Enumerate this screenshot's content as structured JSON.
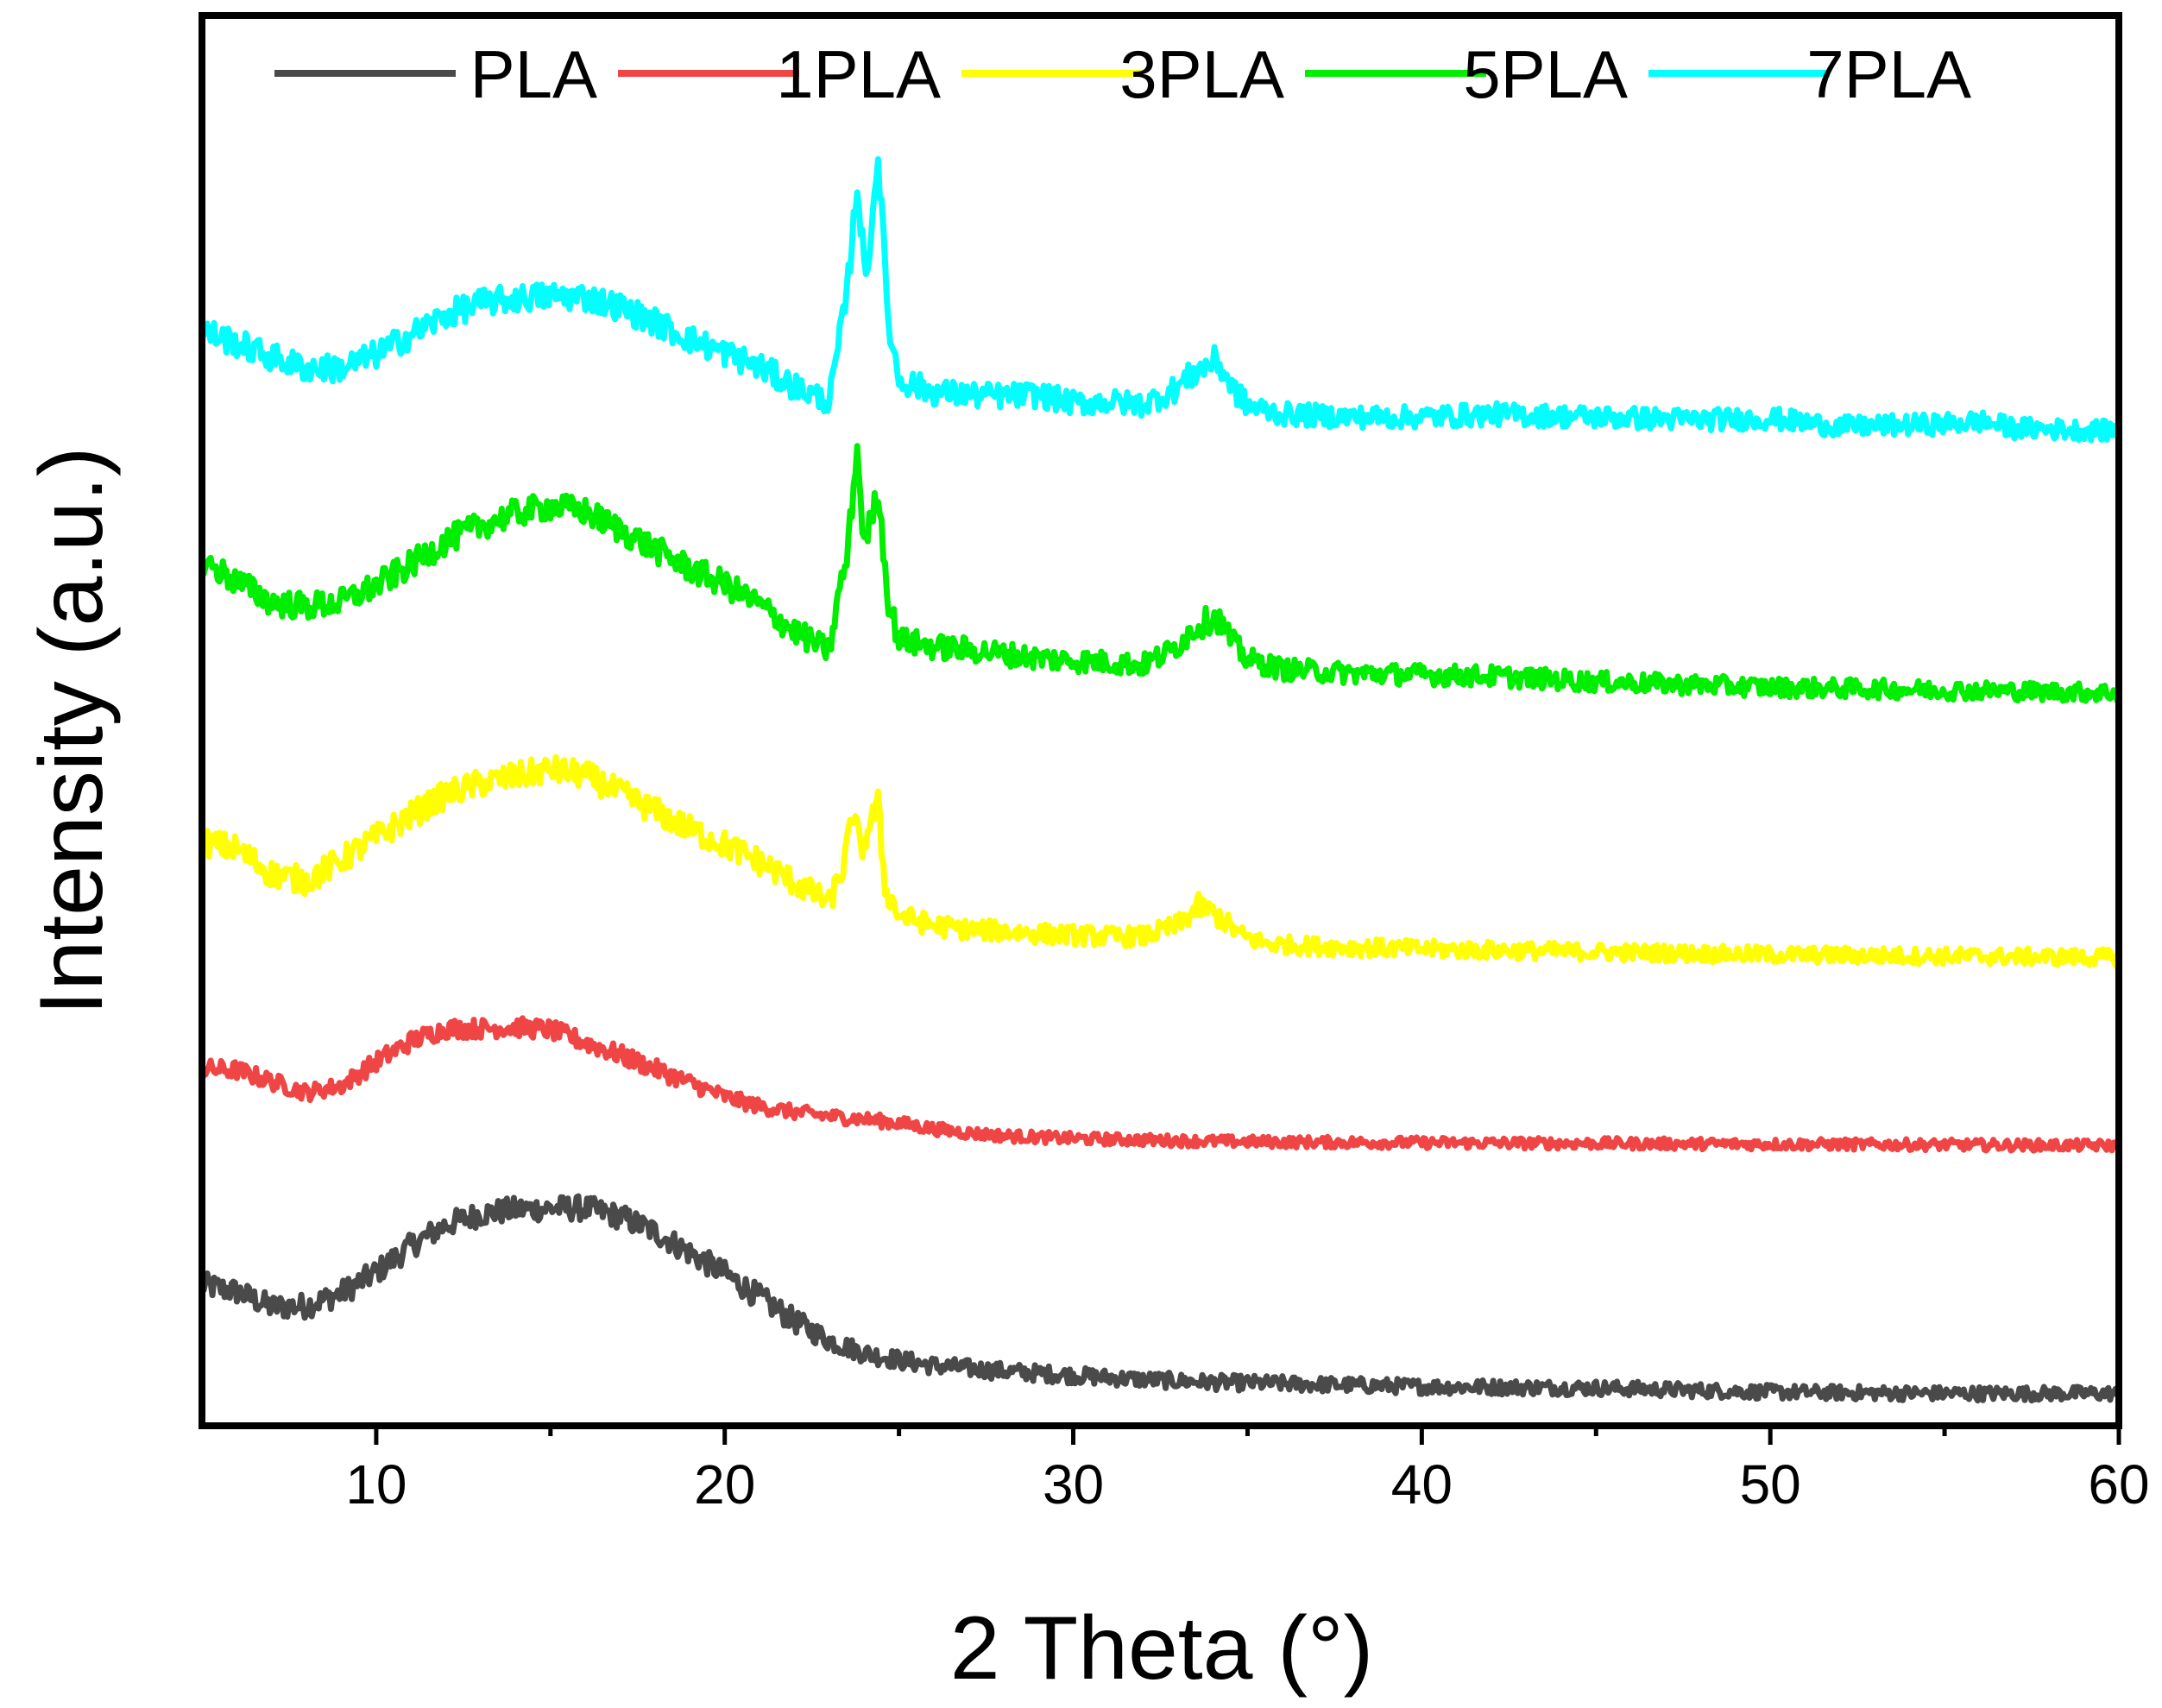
{
  "chart_data": {
    "type": "line",
    "title": "",
    "xlabel": "2 Theta (°)",
    "ylabel": "Intensity (a.u.)",
    "xlim": [
      5,
      60
    ],
    "ylim": [
      0,
      100
    ],
    "xticks": [
      10,
      20,
      30,
      40,
      50,
      60
    ],
    "y_tick_labels_shown": false,
    "grid": false,
    "legend_position": "top",
    "series": [
      {
        "name": "PLA",
        "color": "#4a4a4a",
        "offset": 1.5,
        "noise": 0.9,
        "points": [
          [
            5,
            8
          ],
          [
            6,
            7.5
          ],
          [
            7,
            6.4
          ],
          [
            8,
            6.5
          ],
          [
            9,
            7.4
          ],
          [
            10,
            8.9
          ],
          [
            11,
            10.8
          ],
          [
            12,
            12.3
          ],
          [
            13,
            13.1
          ],
          [
            14,
            13.4
          ],
          [
            15,
            13.5
          ],
          [
            16,
            13.5
          ],
          [
            17,
            12.9
          ],
          [
            18,
            11.8
          ],
          [
            19,
            10.3
          ],
          [
            20,
            8.8
          ],
          [
            21,
            7.1
          ],
          [
            22,
            5.4
          ],
          [
            23,
            4.0
          ],
          [
            24,
            3.1
          ],
          [
            25,
            2.6
          ],
          [
            26,
            2.2
          ],
          [
            28,
            1.8
          ],
          [
            30,
            1.5
          ],
          [
            32,
            1.2
          ],
          [
            34,
            1.0
          ],
          [
            36,
            0.9
          ],
          [
            38,
            0.8
          ],
          [
            40,
            0.7
          ],
          [
            45,
            0.6
          ],
          [
            50,
            0.3
          ],
          [
            55,
            0.2
          ],
          [
            60,
            0.2
          ]
        ]
      },
      {
        "name": "1PLA",
        "color": "#f04545",
        "offset": 19.5,
        "noise": 0.7,
        "points": [
          [
            5,
            5.5
          ],
          [
            6,
            5.4
          ],
          [
            7,
            4.6
          ],
          [
            8,
            3.8
          ],
          [
            9,
            4.3
          ],
          [
            10,
            6
          ],
          [
            11,
            7.5
          ],
          [
            12,
            8.4
          ],
          [
            13,
            8.4
          ],
          [
            14,
            8.5
          ],
          [
            15,
            8.3
          ],
          [
            16,
            7.4
          ],
          [
            17,
            6.5
          ],
          [
            18,
            5.5
          ],
          [
            19,
            4.5
          ],
          [
            20,
            3.5
          ],
          [
            21,
            2.8
          ],
          [
            22,
            2.4
          ],
          [
            23,
            2.1
          ],
          [
            24,
            1.9
          ],
          [
            25,
            1.6
          ],
          [
            26,
            1.2
          ],
          [
            27,
            0.9
          ],
          [
            28,
            0.7
          ],
          [
            30,
            0.5
          ],
          [
            32,
            0.4
          ],
          [
            34,
            0.3
          ],
          [
            36,
            0.25
          ],
          [
            40,
            0.2
          ],
          [
            45,
            0.15
          ],
          [
            50,
            0.1
          ],
          [
            55,
            0.05
          ],
          [
            60,
            0
          ]
        ]
      },
      {
        "name": "3PLA",
        "color": "#ffff00",
        "offset": 32.5,
        "noise": 1.0,
        "points": [
          [
            5,
            8.8
          ],
          [
            6,
            8.3
          ],
          [
            7,
            6.5
          ],
          [
            8,
            6
          ],
          [
            9,
            7.5
          ],
          [
            10,
            9.1
          ],
          [
            11,
            10.7
          ],
          [
            12,
            12.2
          ],
          [
            13,
            13
          ],
          [
            14,
            13.5
          ],
          [
            15,
            14
          ],
          [
            16,
            13.6
          ],
          [
            17,
            12.3
          ],
          [
            18,
            11
          ],
          [
            19,
            9.7
          ],
          [
            20,
            8.6
          ],
          [
            21,
            7.4
          ],
          [
            22,
            5.9
          ],
          [
            23,
            4.4
          ],
          [
            23.4,
            7
          ],
          [
            23.7,
            11
          ],
          [
            23.9,
            8
          ],
          [
            24.15,
            10
          ],
          [
            24.4,
            11.5
          ],
          [
            24.6,
            5.5
          ],
          [
            25,
            3.5
          ],
          [
            26,
            2.8
          ],
          [
            27,
            2.5
          ],
          [
            28,
            2.4
          ],
          [
            29,
            2.2
          ],
          [
            30,
            2.1
          ],
          [
            31,
            2
          ],
          [
            32,
            2
          ],
          [
            33,
            2.8
          ],
          [
            33.6,
            4.2
          ],
          [
            34.2,
            3.4
          ],
          [
            34.8,
            2.1
          ],
          [
            35.5,
            1.5
          ],
          [
            37,
            1.3
          ],
          [
            40,
            1.1
          ],
          [
            45,
            0.9
          ],
          [
            50,
            0.7
          ],
          [
            55,
            0.6
          ],
          [
            60,
            0.5
          ]
        ]
      },
      {
        "name": "5PLA",
        "color": "#00ee00",
        "offset": 50.5,
        "noise": 1.0,
        "points": [
          [
            5,
            11
          ],
          [
            6,
            9.5
          ],
          [
            7,
            8
          ],
          [
            8,
            7.7
          ],
          [
            9,
            8
          ],
          [
            10,
            9.2
          ],
          [
            11,
            10.7
          ],
          [
            12,
            12.4
          ],
          [
            13,
            13.5
          ],
          [
            14,
            14.4
          ],
          [
            15,
            14.9
          ],
          [
            16,
            14.5
          ],
          [
            17,
            13.2
          ],
          [
            18,
            11.8
          ],
          [
            19,
            10.4
          ],
          [
            20,
            9.3
          ],
          [
            21,
            7.8
          ],
          [
            22,
            5.9
          ],
          [
            23,
            4.5
          ],
          [
            23.3,
            9
          ],
          [
            23.5,
            11
          ],
          [
            23.8,
            19
          ],
          [
            24.0,
            12
          ],
          [
            24.4,
            16
          ],
          [
            24.7,
            8
          ],
          [
            25,
            5.3
          ],
          [
            26,
            4.8
          ],
          [
            27,
            4.6
          ],
          [
            28,
            4.3
          ],
          [
            29,
            4
          ],
          [
            30,
            3.8
          ],
          [
            31,
            3.7
          ],
          [
            32,
            3.5
          ],
          [
            32.8,
            4.5
          ],
          [
            33.5,
            6.2
          ],
          [
            34.1,
            7
          ],
          [
            34.6,
            5
          ],
          [
            35,
            3.9
          ],
          [
            36,
            3.2
          ],
          [
            38,
            2.9
          ],
          [
            40,
            2.8
          ],
          [
            42,
            2.7
          ],
          [
            45,
            2.3
          ],
          [
            50,
            1.9
          ],
          [
            55,
            1.7
          ],
          [
            60,
            1.5
          ]
        ]
      },
      {
        "name": "7PLA",
        "color": "#00ffff",
        "offset": 68.5,
        "noise": 1.0,
        "points": [
          [
            5,
            9.5
          ],
          [
            6,
            8.6
          ],
          [
            7,
            7.6
          ],
          [
            8,
            6.8
          ],
          [
            9,
            6.8
          ],
          [
            10,
            7.8
          ],
          [
            11,
            9.2
          ],
          [
            12,
            10.6
          ],
          [
            13,
            11.5
          ],
          [
            14,
            11.8
          ],
          [
            15,
            12
          ],
          [
            16,
            11.9
          ],
          [
            17,
            11.2
          ],
          [
            18,
            10.1
          ],
          [
            19,
            8.9
          ],
          [
            20,
            7.9
          ],
          [
            21,
            6.9
          ],
          [
            22,
            5.5
          ],
          [
            23,
            4.4
          ],
          [
            23.3,
            9
          ],
          [
            23.5,
            12
          ],
          [
            23.8,
            20
          ],
          [
            24.05,
            13
          ],
          [
            24.4,
            22
          ],
          [
            24.7,
            10
          ],
          [
            25,
            6
          ],
          [
            26,
            5.1
          ],
          [
            27,
            4.9
          ],
          [
            28,
            4.8
          ],
          [
            29,
            4.9
          ],
          [
            30,
            4.3
          ],
          [
            31,
            4.4
          ],
          [
            32,
            4.2
          ],
          [
            32.8,
            5.1
          ],
          [
            33.5,
            6.5
          ],
          [
            34.1,
            7.4
          ],
          [
            34.6,
            5.3
          ],
          [
            35,
            4.1
          ],
          [
            36,
            3.5
          ],
          [
            38,
            3.3
          ],
          [
            40,
            3.3
          ],
          [
            42,
            3.5
          ],
          [
            45,
            3.3
          ],
          [
            48,
            3.1
          ],
          [
            50,
            3.2
          ],
          [
            52,
            2.6
          ],
          [
            55,
            2.8
          ],
          [
            56,
            3
          ],
          [
            57,
            2.5
          ],
          [
            60,
            2.3
          ]
        ]
      }
    ]
  }
}
